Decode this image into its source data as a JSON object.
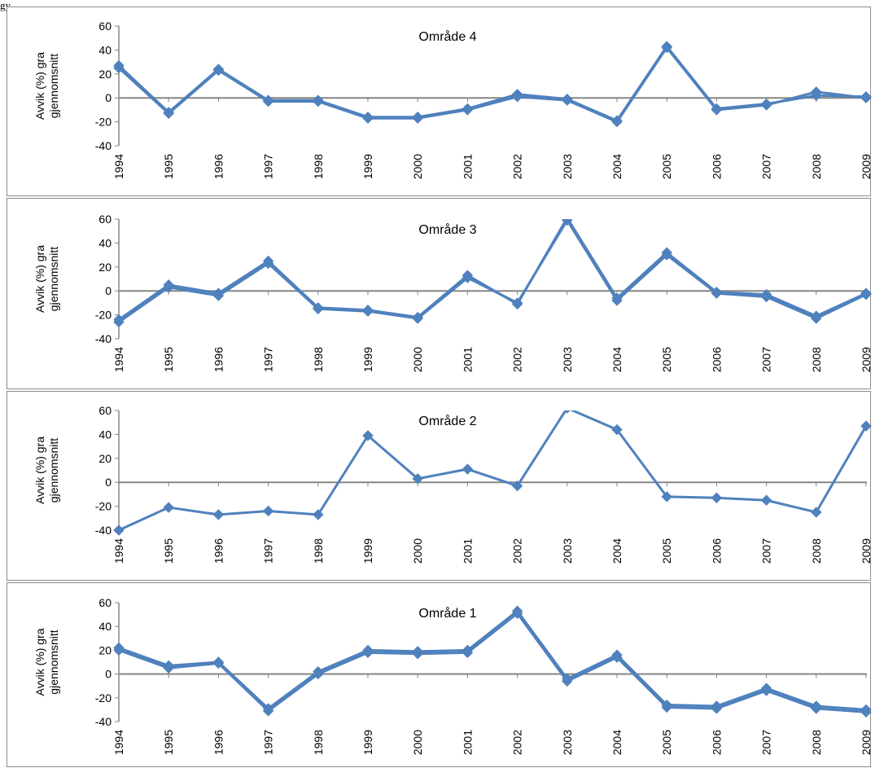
{
  "corner_text": "gy",
  "chart_data": [
    {
      "type": "line",
      "title": "Område 4",
      "ylabel_line1": "Avvik (%) gra",
      "ylabel_line2": "gjennomsnitt",
      "ylim": [
        -40,
        60
      ],
      "yticks": [
        60,
        40,
        20,
        0,
        -20,
        -40
      ],
      "categories": [
        "1994",
        "1995",
        "1996",
        "1997",
        "1998",
        "1999",
        "2000",
        "2001",
        "2002",
        "2003",
        "2004",
        "2005",
        "2006",
        "2007",
        "2008",
        "2009"
      ],
      "series": [
        {
          "values": [
            27,
            -12,
            24,
            -2,
            -2,
            -16,
            -16,
            -9,
            3,
            -1,
            -19,
            43,
            -9,
            -5,
            2,
            1
          ]
        },
        {
          "values": [
            25,
            -13,
            23,
            -3,
            -3,
            -17,
            -17,
            -10,
            1,
            -2,
            -20,
            42,
            -10,
            -6,
            5,
            0
          ]
        }
      ],
      "color": "#4f81bd",
      "grid": false
    },
    {
      "type": "line",
      "title": "Område 3",
      "ylabel_line1": "Avvik (%) gra",
      "ylabel_line2": "gjennomsnitt",
      "ylim": [
        -40,
        60
      ],
      "yticks": [
        60,
        40,
        20,
        0,
        -20,
        -40
      ],
      "categories": [
        "1994",
        "1995",
        "1996",
        "1997",
        "1998",
        "1999",
        "2000",
        "2001",
        "2002",
        "2003",
        "2004",
        "2005",
        "2006",
        "2007",
        "2008",
        "2009"
      ],
      "series": [
        {
          "values": [
            -24,
            5,
            -2,
            25,
            -14,
            -16,
            -22,
            13,
            -11,
            61,
            -6,
            32,
            -1,
            -3,
            -21,
            -2
          ]
        },
        {
          "values": [
            -26,
            3,
            -4,
            23,
            -15,
            -17,
            -23,
            11,
            -10,
            59,
            -8,
            30,
            -2,
            -5,
            -23,
            -3
          ]
        }
      ],
      "color": "#4f81bd",
      "grid": false
    },
    {
      "type": "line",
      "title": "Område 2",
      "ylabel_line1": "Avvik (%) gra",
      "ylabel_line2": "gjennomsnitt",
      "ylim": [
        -40,
        60
      ],
      "yticks": [
        60,
        40,
        20,
        0,
        -20,
        -40
      ],
      "categories": [
        "1994",
        "1995",
        "1996",
        "1997",
        "1998",
        "1999",
        "2000",
        "2001",
        "2002",
        "2003",
        "2004",
        "2005",
        "2006",
        "2007",
        "2008",
        "2009"
      ],
      "series": [
        {
          "values": [
            -40,
            -21,
            -27,
            -24,
            -27,
            39,
            3,
            11,
            -3,
            62,
            44,
            -12,
            -13,
            -15,
            -25,
            47
          ]
        }
      ],
      "color": "#4f81bd",
      "grid": false
    },
    {
      "type": "line",
      "title": "Område 1",
      "ylabel_line1": "Avvik (%) gra",
      "ylabel_line2": "gjennomsnitt",
      "ylim": [
        -40,
        60
      ],
      "yticks": [
        60,
        40,
        20,
        0,
        -20,
        -40
      ],
      "categories": [
        "1994",
        "1995",
        "1996",
        "1997",
        "1998",
        "1999",
        "2000",
        "2001",
        "2002",
        "2003",
        "2004",
        "2005",
        "2006",
        "2007",
        "2008",
        "2009"
      ],
      "series": [
        {
          "values": [
            22,
            7,
            10,
            -29,
            2,
            20,
            19,
            20,
            53,
            -4,
            16,
            -26,
            -27,
            -12,
            -27,
            -30
          ]
        },
        {
          "values": [
            20,
            5,
            9,
            -31,
            0,
            18,
            17,
            18,
            51,
            -6,
            14,
            -28,
            -29,
            -14,
            -29,
            -32
          ]
        }
      ],
      "color": "#4f81bd",
      "grid": false
    }
  ]
}
